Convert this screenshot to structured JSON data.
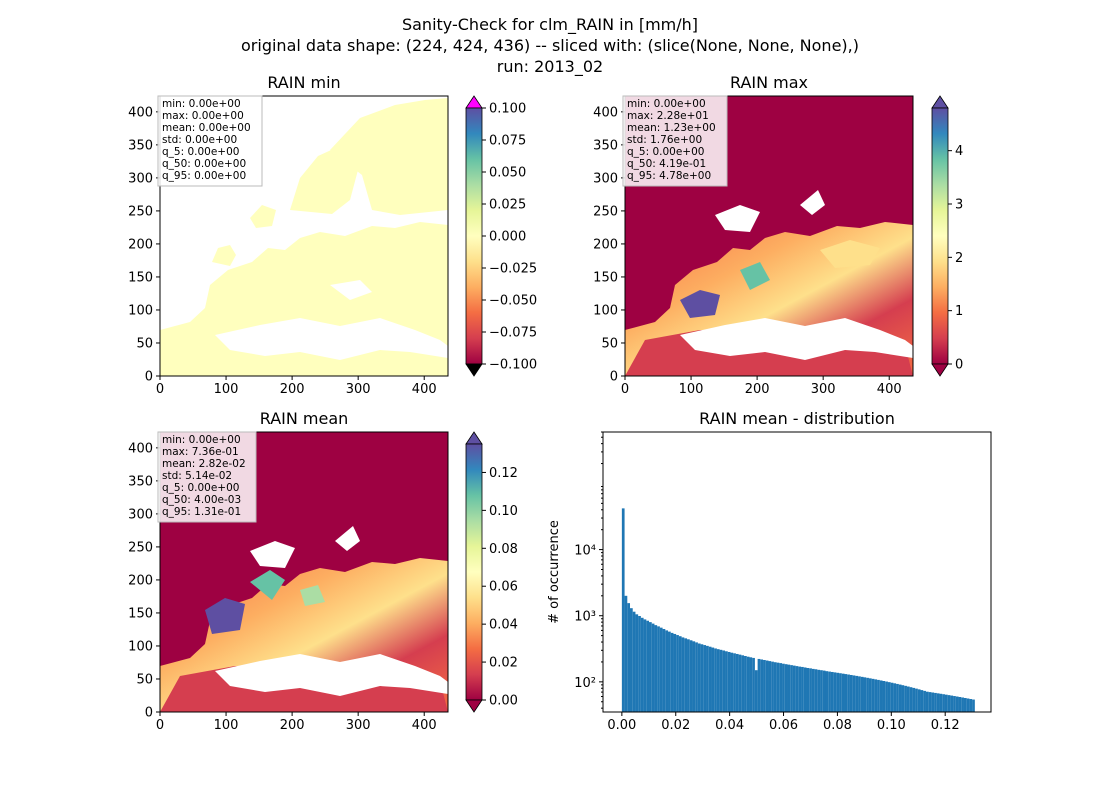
{
  "suptitle": [
    "Sanity-Check for clm_RAIN in [mm/h]",
    "original data shape: (224, 424, 436) -- sliced with: (slice(None, None, None),)",
    "run: 2013_02"
  ],
  "chart_data": [
    {
      "type": "heatmap",
      "title": "RAIN min",
      "xlim": [
        0,
        436
      ],
      "ylim": [
        0,
        424
      ],
      "xticks": [
        "0",
        "100",
        "200",
        "300",
        "400"
      ],
      "yticks": [
        "0",
        "50",
        "100",
        "150",
        "200",
        "250",
        "300",
        "350",
        "400"
      ],
      "colorbar": {
        "cmap": "Spectral",
        "range": [
          -0.1,
          0.1
        ],
        "ticks": [
          "0.100",
          "0.075",
          "0.050",
          "0.025",
          "0.000",
          "−0.025",
          "−0.050",
          "−0.075",
          "−0.100"
        ],
        "extend_top_color": "#ff00ff",
        "extend_bottom_color": "#000000"
      },
      "stats": [
        "min: 0.00e+00",
        "max: 0.00e+00",
        "mean: 0.00e+00",
        "std: 0.00e+00",
        "q_5: 0.00e+00",
        "q_50: 0.00e+00",
        "q_95: 0.00e+00"
      ],
      "land_color": "#ffffbe"
    },
    {
      "type": "heatmap",
      "title": "RAIN max",
      "xlim": [
        0,
        436
      ],
      "ylim": [
        0,
        424
      ],
      "xticks": [
        "0",
        "100",
        "200",
        "300",
        "400"
      ],
      "yticks": [
        "0",
        "50",
        "100",
        "150",
        "200",
        "250",
        "300",
        "350",
        "400"
      ],
      "colorbar": {
        "cmap": "Spectral",
        "range": [
          0,
          4.8
        ],
        "ticks": [
          "4",
          "3",
          "2",
          "1",
          "0"
        ]
      },
      "stats": [
        "min: 0.00e+00",
        "max: 2.28e+01",
        "mean: 1.23e+00",
        "std: 1.76e+00",
        "q_5: 0.00e+00",
        "q_50: 4.19e-01",
        "q_95: 4.78e+00"
      ]
    },
    {
      "type": "heatmap",
      "title": "RAIN mean",
      "xlim": [
        0,
        436
      ],
      "ylim": [
        0,
        424
      ],
      "xticks": [
        "0",
        "100",
        "200",
        "300",
        "400"
      ],
      "yticks": [
        "0",
        "50",
        "100",
        "150",
        "200",
        "250",
        "300",
        "350",
        "400"
      ],
      "colorbar": {
        "cmap": "Spectral",
        "range": [
          0,
          0.135
        ],
        "ticks": [
          "0.12",
          "0.10",
          "0.08",
          "0.06",
          "0.04",
          "0.02",
          "0.00"
        ]
      },
      "stats": [
        "min: 0.00e+00",
        "max: 7.36e-01",
        "mean: 2.82e-02",
        "std: 5.14e-02",
        "q_5: 0.00e+00",
        "q_50: 4.00e-03",
        "q_95: 1.31e-01"
      ]
    },
    {
      "type": "bar",
      "title": "RAIN mean - distribution",
      "ylabel": "# of occurrence",
      "yscale": "log",
      "xlim": [
        -0.007,
        0.137
      ],
      "ylim": [
        35,
        600000
      ],
      "xticks": [
        "0.00",
        "0.02",
        "0.04",
        "0.06",
        "0.08",
        "0.10",
        "0.12"
      ],
      "yticks": [
        "10²",
        "10³",
        "10⁴"
      ],
      "bar_color": "#1f77b4",
      "bin_range": [
        0,
        0.131
      ],
      "bin_count": 130,
      "counts": [
        42000,
        2000,
        1550,
        1300,
        1150,
        1050,
        990,
        930,
        880,
        840,
        800,
        760,
        720,
        690,
        660,
        630,
        600,
        575,
        550,
        530,
        510,
        490,
        470,
        455,
        440,
        425,
        410,
        395,
        380,
        370,
        360,
        350,
        340,
        330,
        320,
        312,
        305,
        298,
        290,
        283,
        276,
        270,
        264,
        258,
        252,
        246,
        240,
        235,
        230,
        150,
        222,
        218,
        214,
        210,
        206,
        202,
        198,
        195,
        192,
        188,
        185,
        182,
        179,
        176,
        173,
        170,
        168,
        165,
        162,
        160,
        157,
        155,
        152,
        150,
        148,
        145,
        143,
        141,
        139,
        137,
        135,
        133,
        131,
        129,
        127,
        125,
        123,
        121,
        119,
        117,
        115,
        113,
        111,
        109,
        107,
        105,
        103,
        101,
        99,
        97,
        95,
        93,
        91,
        89,
        87,
        85,
        83,
        81,
        79,
        77,
        75,
        73,
        71,
        70,
        69,
        68,
        67,
        66,
        65,
        64,
        63,
        62,
        61,
        60,
        59,
        58,
        57,
        56,
        55,
        54
      ]
    }
  ]
}
